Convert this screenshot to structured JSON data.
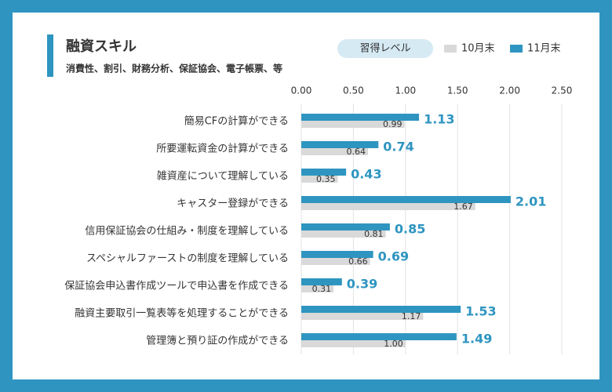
{
  "chart_data": {
    "type": "bar",
    "orientation": "horizontal",
    "title": "融資スキル",
    "subtitle": "消費性、割引、財務分析、保証協会、電子帳票、等",
    "legend_title": "習得レベル",
    "categories": [
      "簡易CFの計算ができる",
      "所要運転資金の計算ができる",
      "雑資産について理解している",
      "キャスター登録ができる",
      "信用保証協会の仕組み・制度を理解している",
      "スペシャルファーストの制度を理解している",
      "保証協会申込書作成ツールで申込書を作成できる",
      "融資主要取引一覧表等を処理することができる",
      "管理簿と預り証の作成ができる"
    ],
    "series": [
      {
        "name": "10月末",
        "color": "#d9d9d9",
        "values": [
          0.99,
          0.64,
          0.35,
          1.67,
          0.81,
          0.66,
          0.31,
          1.17,
          1.0
        ],
        "value_labels": [
          "0.99",
          "0.64",
          "0.35",
          "1.67",
          "0.81",
          "0.66",
          "0.31",
          "1.17",
          "1.00"
        ]
      },
      {
        "name": "11月末",
        "color": "#2e95c0",
        "values": [
          1.13,
          0.74,
          0.43,
          2.01,
          0.85,
          0.69,
          0.39,
          1.53,
          1.49
        ],
        "value_labels": [
          "1.13",
          "0.74",
          "0.43",
          "2.01",
          "0.85",
          "0.69",
          "0.39",
          "1.53",
          "1.49"
        ]
      }
    ],
    "xlim": [
      0,
      2.5
    ],
    "xticks": [
      {
        "value": 0,
        "label": "0.00"
      },
      {
        "value": 0.5,
        "label": "0.50"
      },
      {
        "value": 1,
        "label": "1.00"
      },
      {
        "value": 1.5,
        "label": "1.50"
      },
      {
        "value": 2,
        "label": "2.00"
      },
      {
        "value": 2.5,
        "label": "2.50"
      }
    ],
    "grid": true
  }
}
